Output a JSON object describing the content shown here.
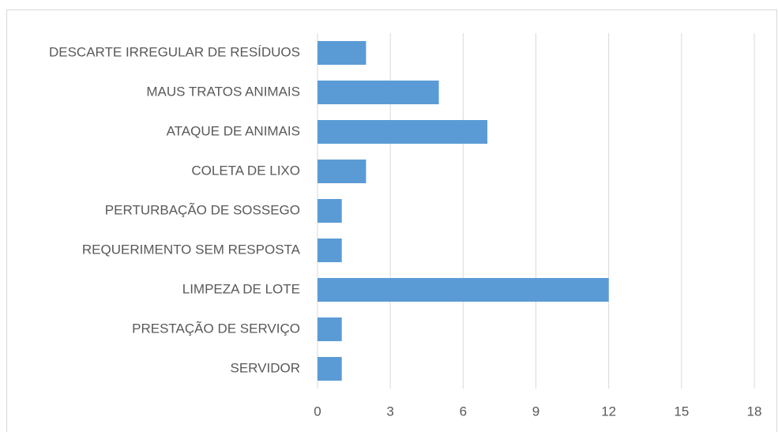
{
  "chart_data": {
    "type": "barh",
    "categories": [
      "DESCARTE IRREGULAR DE RESÍDUOS",
      "MAUS TRATOS ANIMAIS",
      "ATAQUE DE ANIMAIS",
      "COLETA DE LIXO",
      "PERTURBAÇÃO DE SOSSEGO",
      "REQUERIMENTO SEM RESPOSTA",
      "LIMPEZA DE LOTE",
      "PRESTAÇÃO DE SERVIÇO",
      "SERVIDOR"
    ],
    "values": [
      2,
      5,
      7,
      2,
      1,
      1,
      12,
      1,
      1
    ],
    "color": "#5b9bd5",
    "xlim": [
      0,
      18
    ],
    "xticks": [
      0,
      3,
      6,
      9,
      12,
      15,
      18
    ],
    "grid": true
  }
}
